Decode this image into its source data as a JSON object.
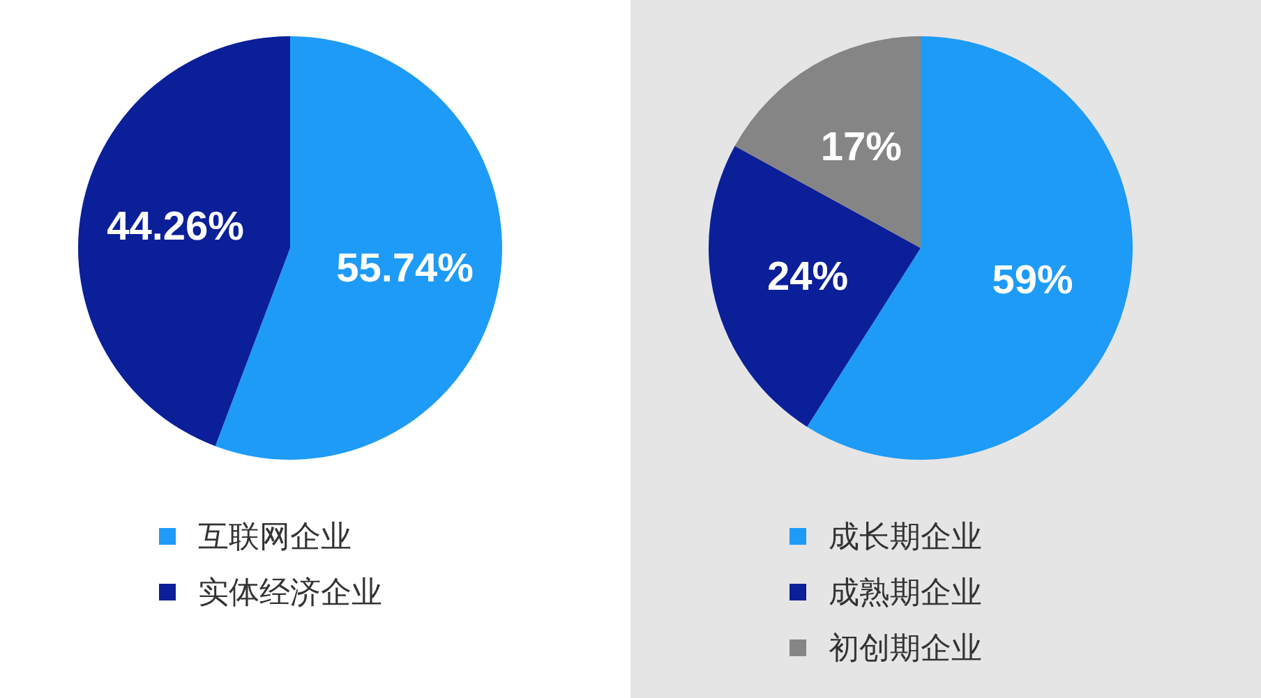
{
  "chart_data": [
    {
      "type": "pie",
      "categories": [
        "互联网企业",
        "实体经济企业"
      ],
      "values": [
        55.74,
        44.26
      ],
      "value_labels": [
        "55.74%",
        "44.26%"
      ],
      "colors": [
        "#1e9bf7",
        "#0b1f99"
      ],
      "legend": "bottom"
    },
    {
      "type": "pie",
      "categories": [
        "成长期企业",
        "成熟期企业",
        "初创期企业"
      ],
      "values": [
        59,
        24,
        17
      ],
      "value_labels": [
        "59%",
        "24%",
        "17%"
      ],
      "colors": [
        "#1e9bf7",
        "#0b1f99",
        "#858585"
      ],
      "legend": "bottom"
    }
  ]
}
